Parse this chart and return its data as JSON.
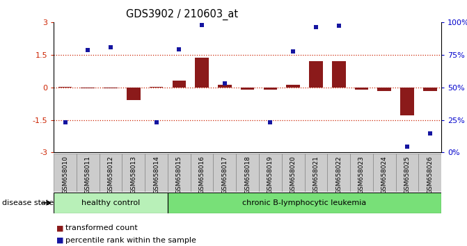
{
  "title": "GDS3902 / 210603_at",
  "samples": [
    "GSM658010",
    "GSM658011",
    "GSM658012",
    "GSM658013",
    "GSM658014",
    "GSM658015",
    "GSM658016",
    "GSM658017",
    "GSM658018",
    "GSM658019",
    "GSM658020",
    "GSM658021",
    "GSM658022",
    "GSM658023",
    "GSM658024",
    "GSM658025",
    "GSM658026"
  ],
  "bar_values": [
    0.02,
    -0.04,
    -0.04,
    -0.58,
    0.02,
    0.32,
    1.35,
    0.12,
    -0.1,
    -0.12,
    0.13,
    1.22,
    1.22,
    -0.12,
    -0.18,
    -1.28,
    -0.17
  ],
  "scatter_values": [
    -1.62,
    1.72,
    1.85,
    null,
    -1.62,
    1.75,
    2.88,
    0.18,
    null,
    -1.6,
    1.65,
    2.78,
    2.82,
    null,
    null,
    -2.72,
    -2.12
  ],
  "healthy_count": 5,
  "ylim": [
    -3,
    3
  ],
  "yticks": [
    -3,
    -1.5,
    0,
    1.5,
    3
  ],
  "yticklabels": [
    "-3",
    "-1.5",
    "0",
    "1.5",
    "3"
  ],
  "right_yticks": [
    0,
    25,
    50,
    75,
    100
  ],
  "right_yticklabels": [
    "0%",
    "25%",
    "50%",
    "75%",
    "100%"
  ],
  "dotted_lines": [
    1.5,
    0.0,
    -1.5
  ],
  "bar_color": "#8B1A1A",
  "scatter_color": "#1515a0",
  "healthy_bg": "#b8f0b8",
  "leukemia_bg": "#78e078",
  "tick_bg": "#cccccc",
  "tick_sep_color": "#ffffff",
  "tick_border_color": "#888888",
  "legend_bar_label": "transformed count",
  "legend_scatter_label": "percentile rank within the sample",
  "healthy_label": "healthy control",
  "leukemia_label": "chronic B-lymphocytic leukemia",
  "disease_state_label": "disease state",
  "left_ytick_color": "#cc2200",
  "right_ytick_color": "#0000cc"
}
